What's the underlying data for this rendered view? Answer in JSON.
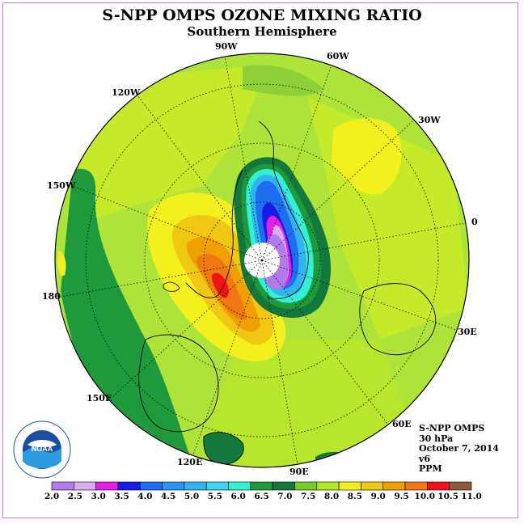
{
  "header": {
    "title": "S-NPP OMPS OZONE MIXING RATIO",
    "subtitle": "Southern Hemisphere"
  },
  "map": {
    "projection": "polar stereographic (south pole)",
    "longitude_labels": [
      "90W",
      "60W",
      "120W",
      "30W",
      "150W",
      "0",
      "180",
      "30E",
      "150E",
      "60E",
      "120E",
      "90E"
    ],
    "colors": {
      "ocean_background": "#aee43a",
      "ozone_hole_core": "#b07aea",
      "pole_missing": "#ffffff",
      "max_red": "#f20000"
    }
  },
  "info": {
    "product": "S-NPP OMPS",
    "level": "30 hPa",
    "date": "October 7, 2014",
    "version": "v6",
    "units": "PPM"
  },
  "colorbar": {
    "ticks": [
      "2.0",
      "2.5",
      "3.0",
      "3.5",
      "4.0",
      "4.5",
      "5.0",
      "5.5",
      "6.0",
      "6.5",
      "7.0",
      "7.5",
      "8.0",
      "8.5",
      "9.0",
      "9.5",
      "10.0",
      "10.5",
      "11.0"
    ],
    "colors": [
      "#b27ce8",
      "#dcaaf0",
      "#e61ee6",
      "#1a1ae6",
      "#1e6ef0",
      "#2896f0",
      "#32b4f0",
      "#3cd2f0",
      "#32f0d2",
      "#1e9a3c",
      "#14783c",
      "#78cc28",
      "#b4e628",
      "#f0f01e",
      "#f0c814",
      "#f0a000",
      "#f07814",
      "#f01414",
      "#8c5a3c"
    ]
  },
  "logo": {
    "text": "NOAA",
    "ring_text": "NATIONAL OCEANIC AND ATMOSPHERIC ADMINISTRATION · U.S. DEPARTMENT OF COMMERCE"
  }
}
